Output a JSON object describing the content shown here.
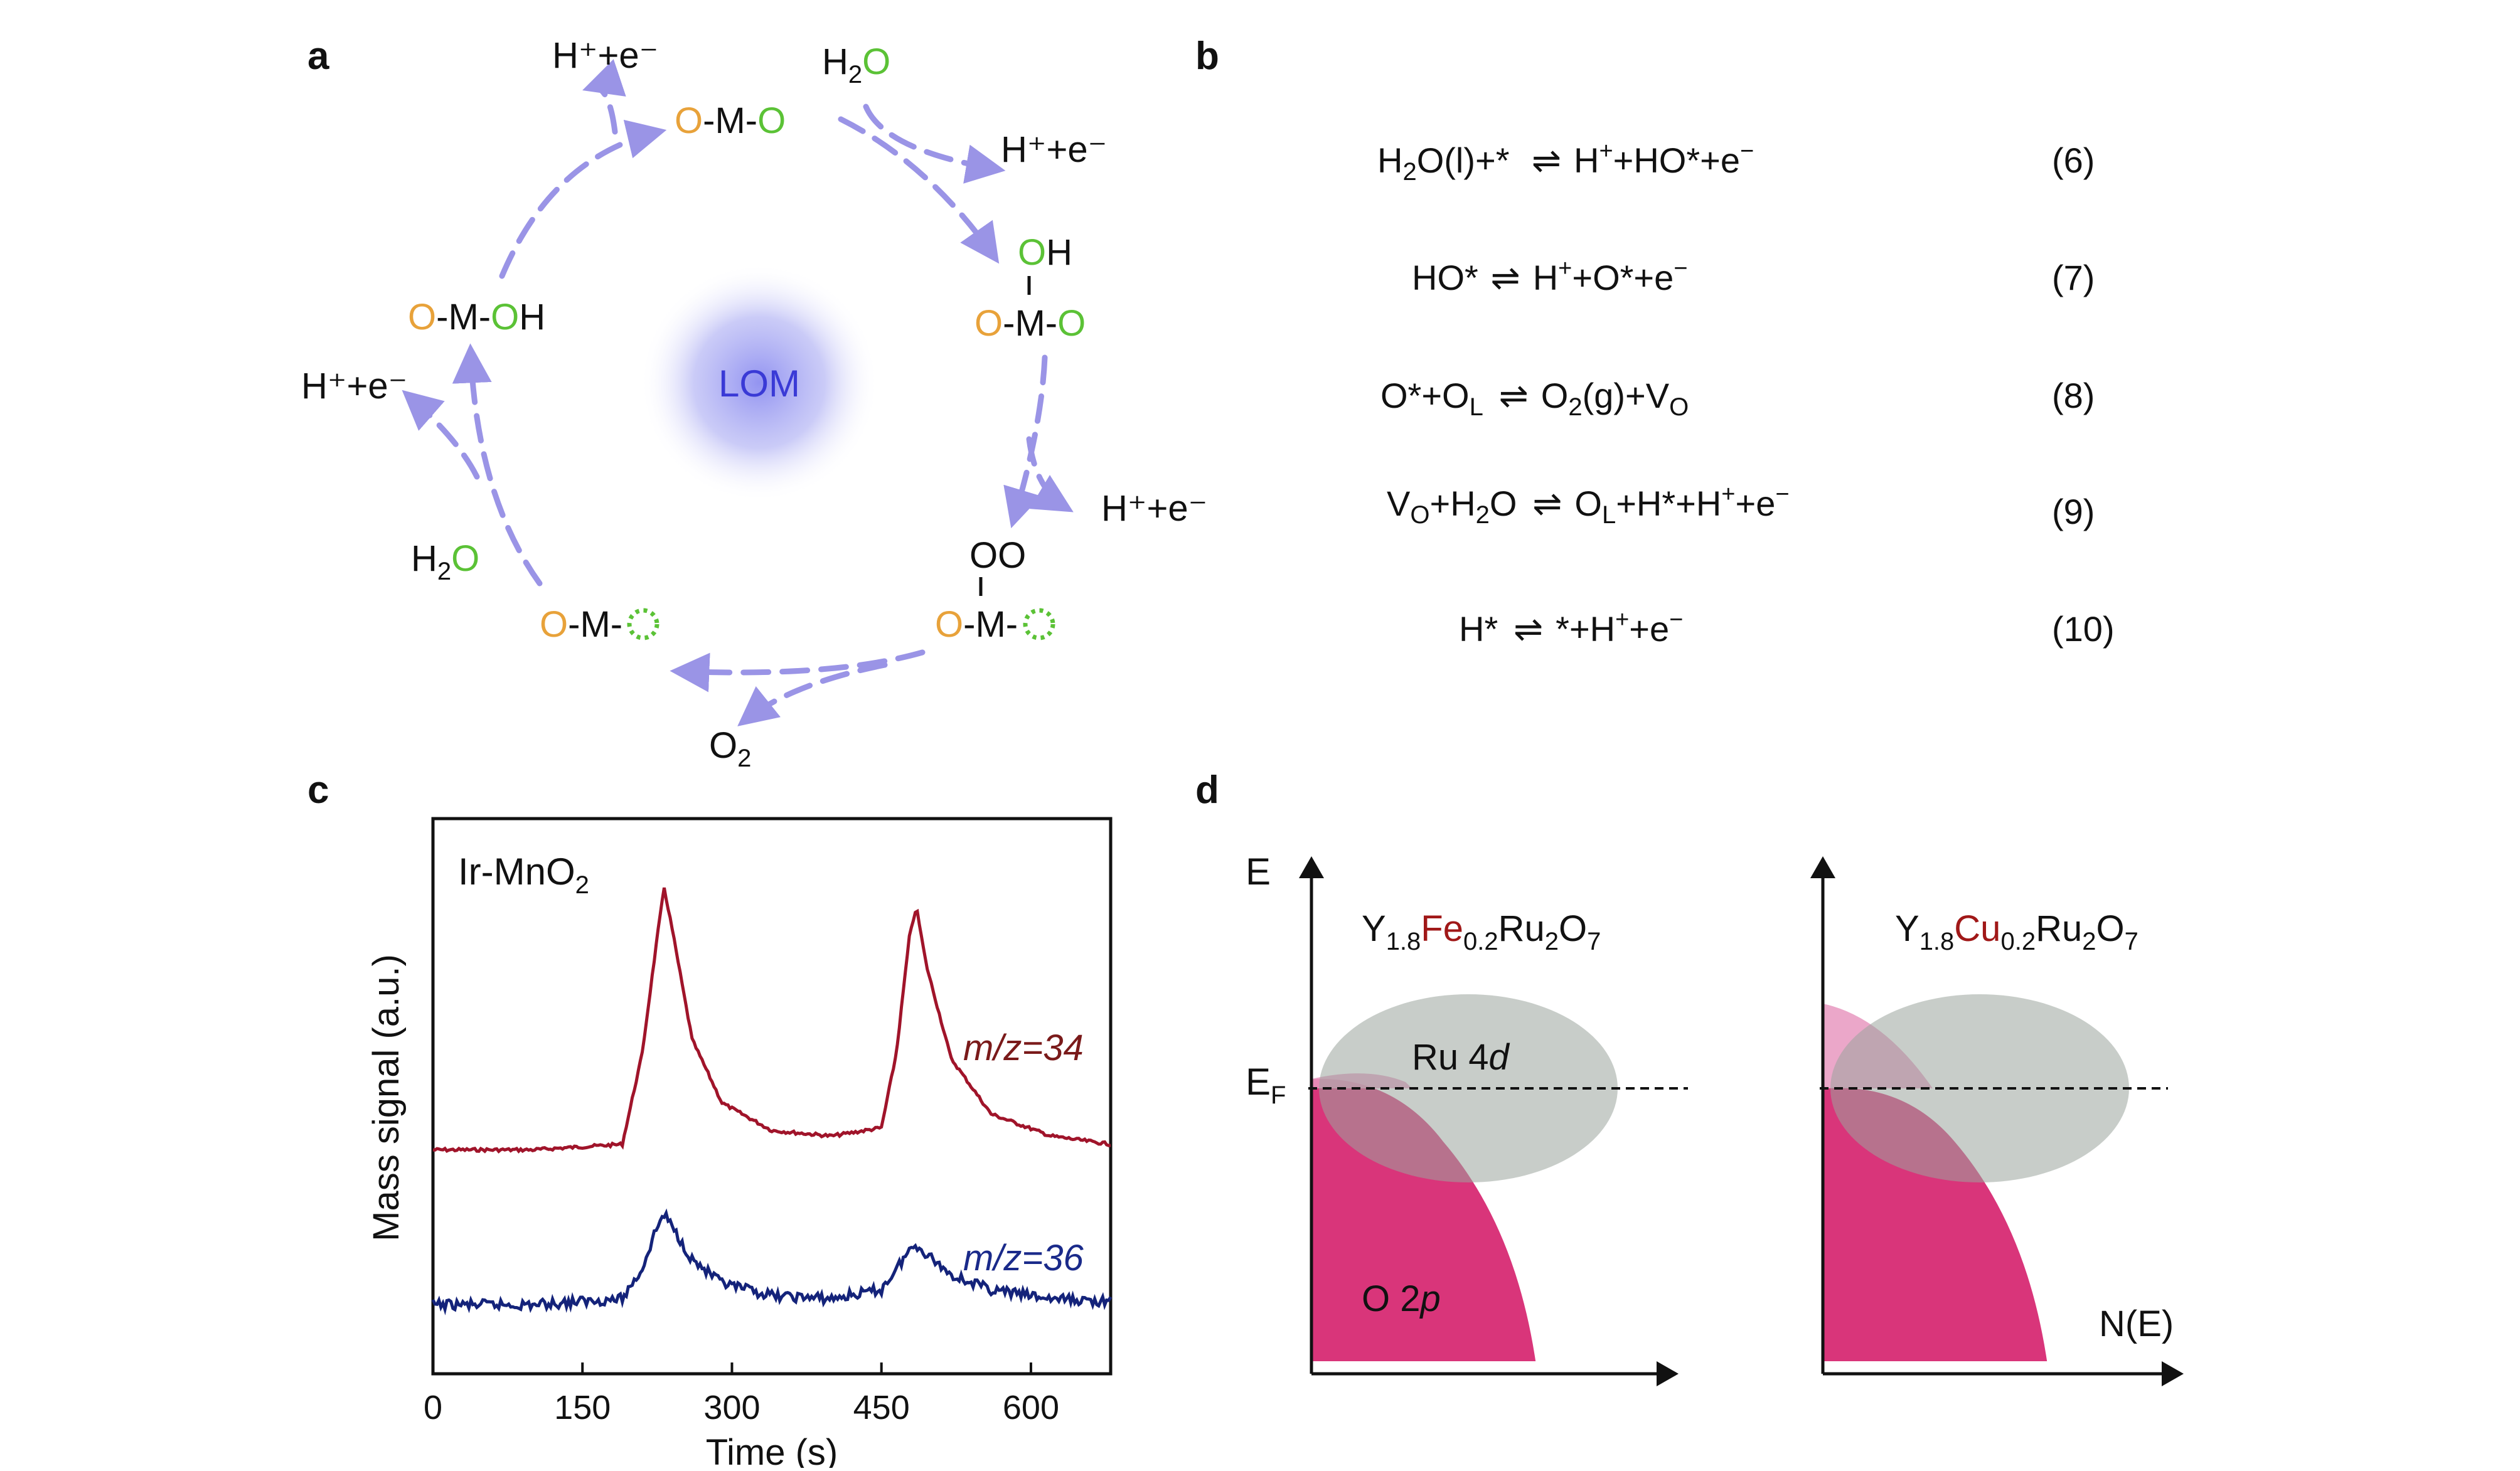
{
  "colors": {
    "orange": "#e8a23a",
    "green": "#5bc236",
    "arrow": "#9a94e6",
    "lom_text": "#3a3ad6",
    "red_trace": "#a0142a",
    "blue_trace": "#14237a",
    "m34_text": "#7a1a1a",
    "m36_text": "#1a2a8a",
    "o2p_fill": "#d9357a",
    "ru4d_fill": "#9aa49c",
    "dopant": "#a01818"
  },
  "panel_a": {
    "label": "a",
    "center": "LOM",
    "species": {
      "top": [
        "O",
        "-M-",
        "O"
      ],
      "right_upper": {
        "top": [
          "O",
          "H"
        ],
        "bottom": [
          "O",
          "-M-",
          "O"
        ]
      },
      "right_lower": {
        "top": [
          "OO"
        ],
        "bottom": [
          "O",
          "-M-"
        ]
      },
      "bottom_left": [
        "O",
        "-M-"
      ],
      "left": [
        "O",
        "-M-",
        "O",
        "H"
      ]
    },
    "byproducts": {
      "proton_electron": "H⁺+e⁻",
      "water": "H₂O",
      "oxygen": "O₂"
    }
  },
  "panel_b": {
    "label": "b",
    "equations": [
      {
        "text": "H₂O(l)+*  ⇌  H⁺+HO*+e⁻",
        "num": "(6)"
      },
      {
        "text": "HO* ⇌  H⁺+O*+e⁻",
        "num": "(7)"
      },
      {
        "text": "O*+O_L  ⇌  O₂(g)+V_O",
        "num": "(8)"
      },
      {
        "text": "V_O+H₂O  ⇌  O_L+H*+H⁺+e⁻",
        "num": "(9)"
      },
      {
        "text": "H*  ⇌  *+H⁺+e⁻",
        "num": "(10)"
      }
    ]
  },
  "panel_c": {
    "label": "c",
    "sample": "Ir-MnO₂",
    "trace_labels": [
      "m/z=34",
      "m/z=36"
    ],
    "ylabel": "Mass signal (a.u.)",
    "xlabel": "Time (s)",
    "xticks": [
      "0",
      "150",
      "300",
      "450",
      "600"
    ]
  },
  "panel_d": {
    "label": "d",
    "left_compound": "Y1.8Fe0.2Ru2O7",
    "right_compound": "Y1.8Cu0.2Ru2O7",
    "energy_axis": "E",
    "fermi": "E_F",
    "band_d": "Ru 4d",
    "band_p": "O 2p",
    "dos_axis": "N(E)"
  },
  "chart_data": [
    {
      "type": "line",
      "panel": "c",
      "xlabel": "Time (s)",
      "ylabel": "Mass signal (a.u.)",
      "xlim": [
        0,
        680
      ],
      "x": [
        0,
        100,
        190,
        210,
        225,
        232,
        240,
        260,
        290,
        340,
        400,
        450,
        465,
        478,
        485,
        495,
        520,
        560,
        620,
        680
      ],
      "series": [
        {
          "name": "m/z=34",
          "values": [
            0.05,
            0.05,
            0.07,
            0.4,
            0.82,
            1.0,
            0.85,
            0.45,
            0.22,
            0.12,
            0.1,
            0.13,
            0.4,
            0.82,
            0.93,
            0.72,
            0.38,
            0.18,
            0.1,
            0.07
          ]
        },
        {
          "name": "m/z=36",
          "values": [
            0.0,
            0.0,
            0.02,
            0.12,
            0.26,
            0.3,
            0.26,
            0.15,
            0.07,
            0.03,
            0.02,
            0.05,
            0.12,
            0.18,
            0.2,
            0.17,
            0.1,
            0.05,
            0.02,
            0.01
          ]
        }
      ]
    }
  ]
}
